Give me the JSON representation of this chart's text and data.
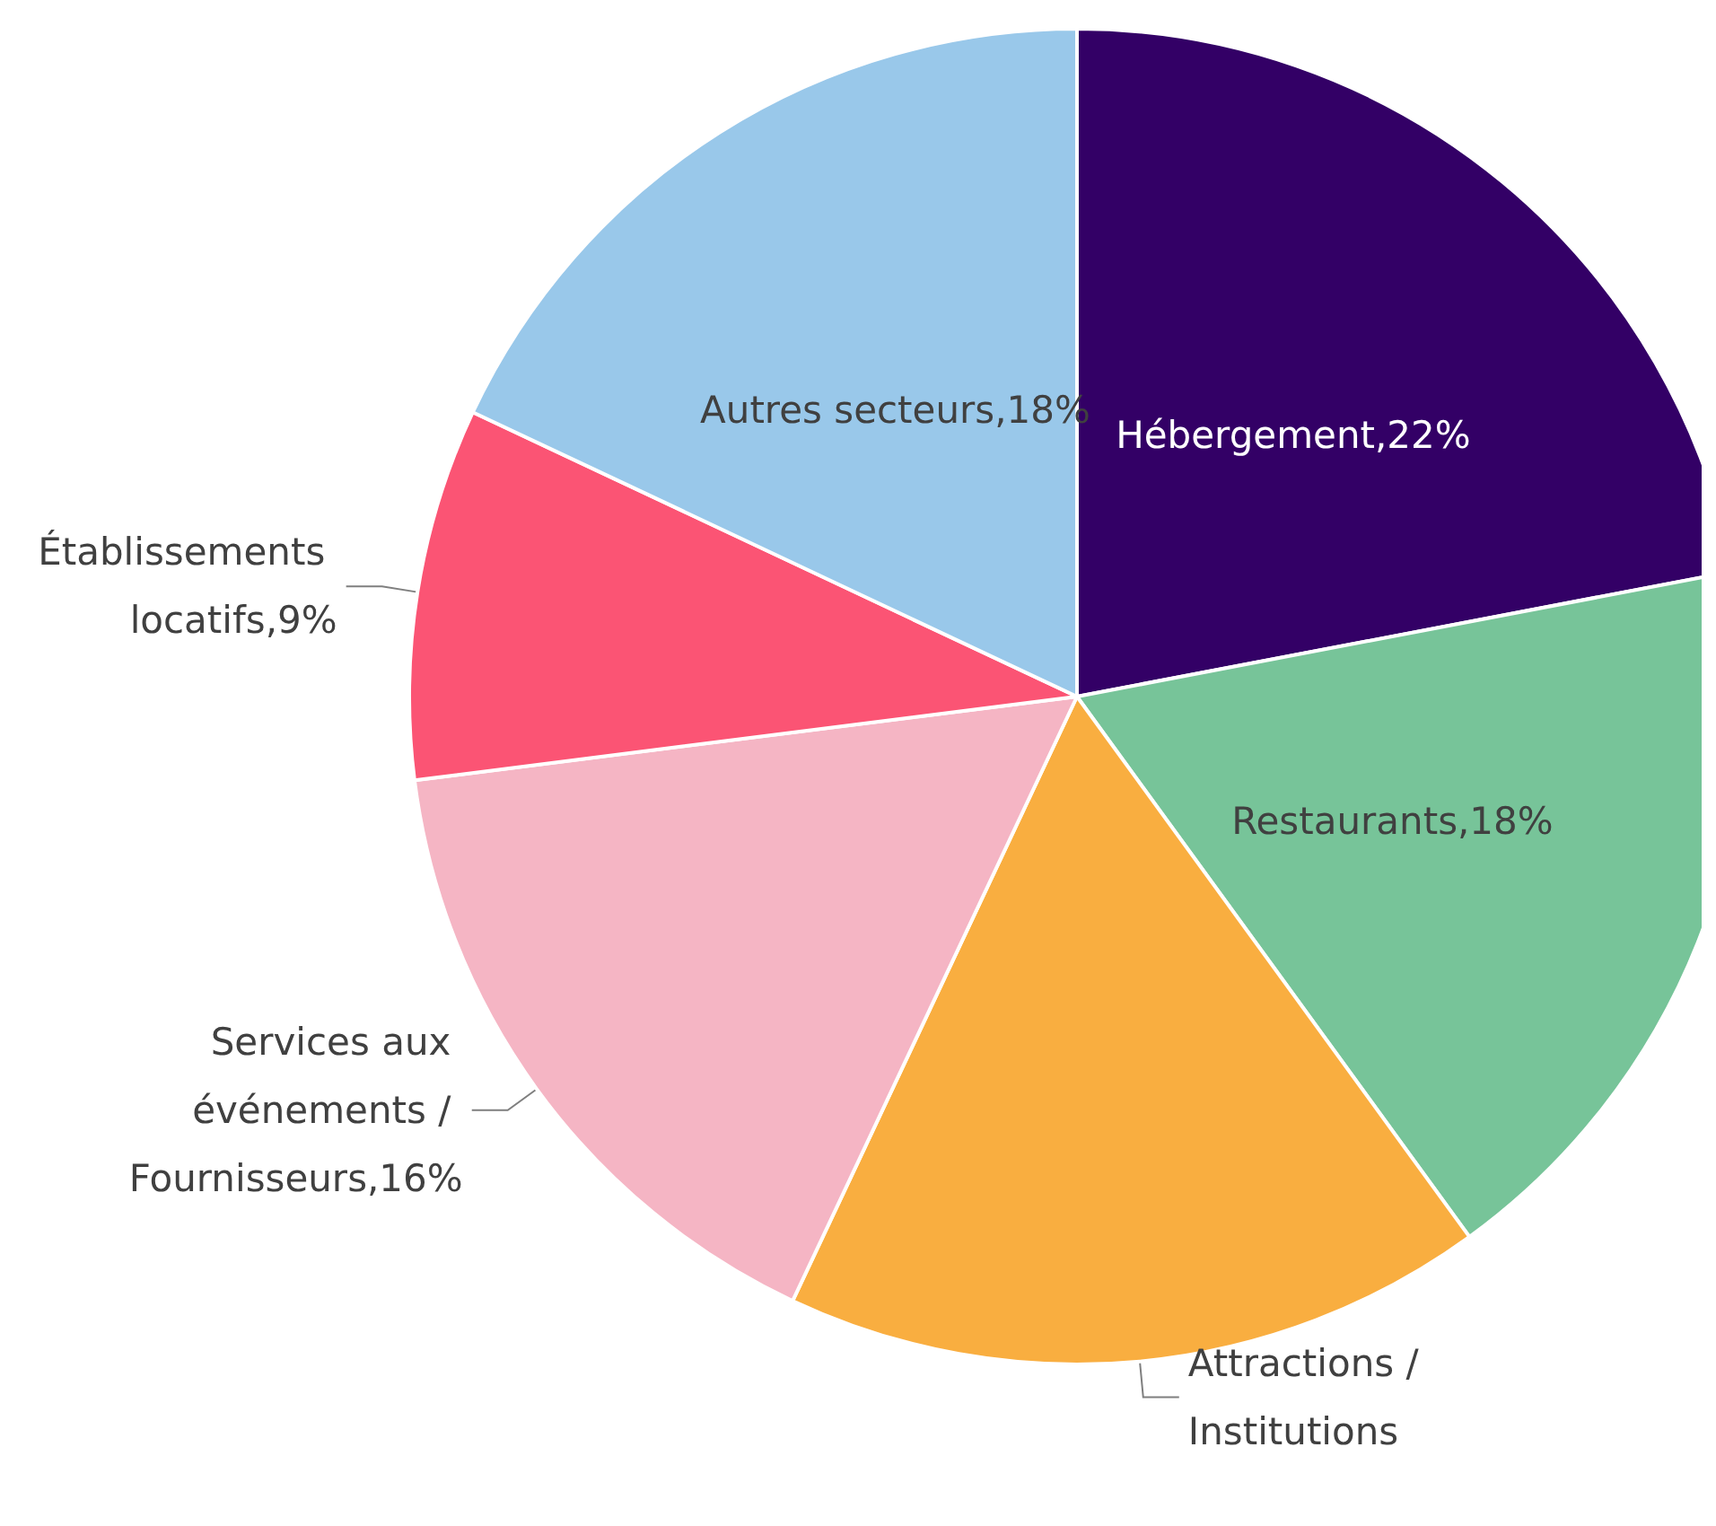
{
  "chart_data": {
    "type": "pie",
    "categories": [
      "Hébergement,22%",
      "Restaurants,18%",
      "Attractions / Institutions",
      "Services aux événements / Fournisseurs,16%",
      "Établissements locatifs,9%",
      "Autres secteurs,18%"
    ],
    "values": [
      22,
      18,
      17,
      16,
      9,
      18
    ],
    "colors": [
      "#330066",
      "#77c499",
      "#f9ae40",
      "#f5b5c4",
      "#fb5474",
      "#99c8ea"
    ],
    "legend": false
  }
}
